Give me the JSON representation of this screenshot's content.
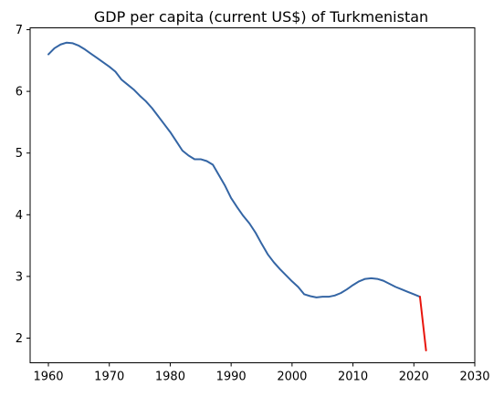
{
  "chart_data": {
    "type": "line",
    "title": "GDP per capita (current US$) of Turkmenistan",
    "xlabel": "",
    "ylabel": "",
    "xlim": [
      1957,
      2030
    ],
    "ylim": [
      1.6,
      7.03
    ],
    "x_ticks": [
      1960,
      1970,
      1980,
      1990,
      2000,
      2010,
      2020,
      2030
    ],
    "y_ticks": [
      2,
      3,
      4,
      5,
      6,
      7
    ],
    "grid": false,
    "legend": "none",
    "series": [
      {
        "color": "#3465a4",
        "x": [
          1960,
          1961,
          1962,
          1963,
          1964,
          1965,
          1966,
          1967,
          1968,
          1969,
          1970,
          1971,
          1972,
          1973,
          1974,
          1975,
          1976,
          1977,
          1978,
          1979,
          1980,
          1981,
          1982,
          1983,
          1984,
          1985,
          1986,
          1987,
          1988,
          1989,
          1990,
          1991,
          1992,
          1993,
          1994,
          1995,
          1996,
          1997,
          1998,
          1999,
          2000,
          2001,
          2002,
          2003,
          2004,
          2005,
          2006,
          2007,
          2008,
          2009,
          2010,
          2011,
          2012,
          2013,
          2014,
          2015,
          2016,
          2017,
          2018,
          2019,
          2020,
          2021
        ],
        "values": [
          6.6,
          6.7,
          6.76,
          6.79,
          6.78,
          6.74,
          6.68,
          6.61,
          6.54,
          6.47,
          6.4,
          6.32,
          6.19,
          6.11,
          6.03,
          5.93,
          5.84,
          5.73,
          5.6,
          5.47,
          5.34,
          5.19,
          5.04,
          4.96,
          4.9,
          4.9,
          4.87,
          4.81,
          4.64,
          4.47,
          4.27,
          4.12,
          3.98,
          3.86,
          3.71,
          3.53,
          3.36,
          3.23,
          3.12,
          3.02,
          2.92,
          2.83,
          2.71,
          2.68,
          2.66,
          2.67,
          2.67,
          2.69,
          2.73,
          2.79,
          2.86,
          2.92,
          2.96,
          2.97,
          2.96,
          2.93,
          2.88,
          2.83,
          2.79,
          2.75,
          2.71,
          2.67
        ]
      },
      {
        "color": "#e8150c",
        "x": [
          2021,
          2022
        ],
        "values": [
          2.67,
          1.8
        ]
      }
    ]
  }
}
